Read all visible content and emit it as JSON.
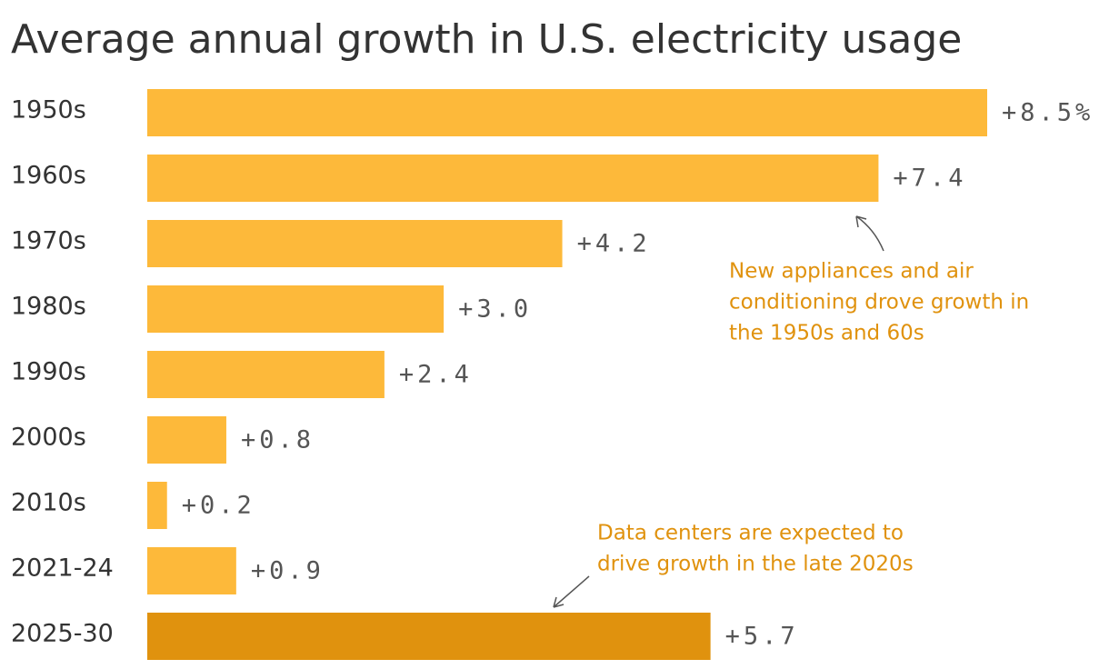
{
  "chart_data": {
    "type": "bar",
    "orientation": "horizontal",
    "title": "Average annual growth in U.S. electricity usage",
    "categories": [
      "1950s",
      "1960s",
      "1970s",
      "1980s",
      "1990s",
      "2000s",
      "2010s",
      "2021-24",
      "2025-30"
    ],
    "values": [
      8.5,
      7.4,
      4.2,
      3.0,
      2.4,
      0.8,
      0.2,
      0.9,
      5.7
    ],
    "value_labels": [
      "+8.5%",
      "+7.4",
      "+4.2",
      "+3.0",
      "+2.4",
      "+0.8",
      "+0.2",
      "+0.9",
      "+5.7"
    ],
    "colors": [
      "#fdb93a",
      "#fdb93a",
      "#fdb93a",
      "#fdb93a",
      "#fdb93a",
      "#fdb93a",
      "#fdb93a",
      "#fdb93a",
      "#e0920e"
    ],
    "annotations": [
      {
        "lines": [
          "New appliances and air",
          "conditioning drove growth in",
          "the 1950s and 60s"
        ]
      },
      {
        "lines": [
          "Data centers are expected to",
          "drive growth in the late 2020s"
        ]
      }
    ]
  }
}
